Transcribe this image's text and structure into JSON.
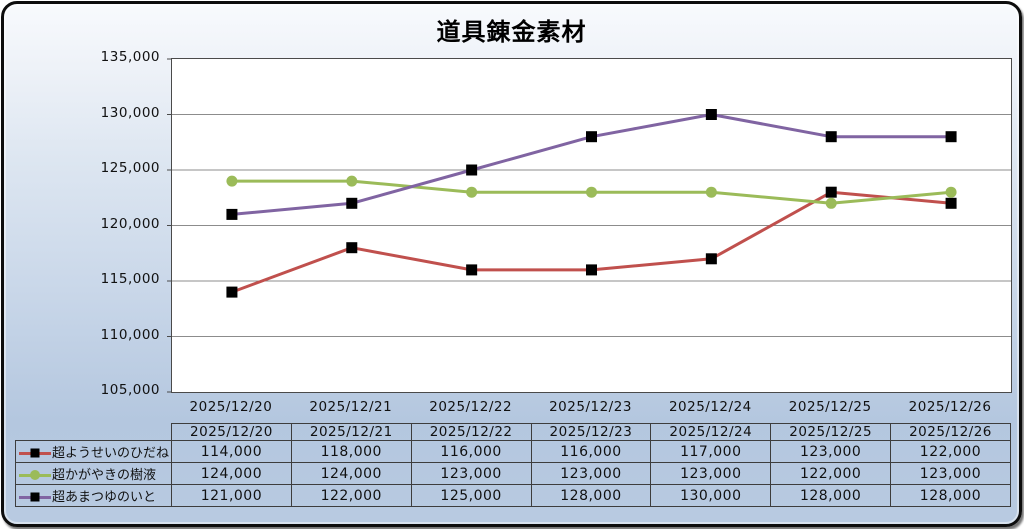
{
  "title": "道具錬金素材",
  "chart_data": {
    "type": "line",
    "title": "道具錬金素材",
    "categories": [
      "2025/12/20",
      "2025/12/21",
      "2025/12/22",
      "2025/12/23",
      "2025/12/24",
      "2025/12/25",
      "2025/12/26"
    ],
    "series": [
      {
        "name": "超ようせいのひだね",
        "values": [
          114000,
          118000,
          116000,
          116000,
          117000,
          123000,
          122000
        ],
        "color": "#c0504d",
        "marker": "square",
        "marker_color": "#000000"
      },
      {
        "name": "超かがやきの樹液",
        "values": [
          124000,
          124000,
          123000,
          123000,
          123000,
          122000,
          123000
        ],
        "color": "#9bbb59",
        "marker": "circle",
        "marker_color": "#9bbb59"
      },
      {
        "name": "超あまつゆのいと",
        "values": [
          121000,
          122000,
          125000,
          128000,
          130000,
          128000,
          128000
        ],
        "color": "#8064a2",
        "marker": "square",
        "marker_color": "#000000"
      }
    ],
    "ylim": [
      105000,
      135000
    ],
    "ytick_step": 5000,
    "ytick_labels": [
      "135,000",
      "130,000",
      "125,000",
      "120,000",
      "115,000",
      "110,000",
      "105,000"
    ],
    "grid": true,
    "legend_position": "table-left-column",
    "xlabel": "",
    "ylabel": ""
  },
  "colors": {
    "panel_background_top": "#f8fafd",
    "panel_background_bottom": "#b8cae1",
    "panel_border": "#0d0d0d",
    "plot_background": "#ffffff",
    "plot_border": "#4a4a4a",
    "gridline": "#8c8c8c",
    "text": "#111111"
  }
}
